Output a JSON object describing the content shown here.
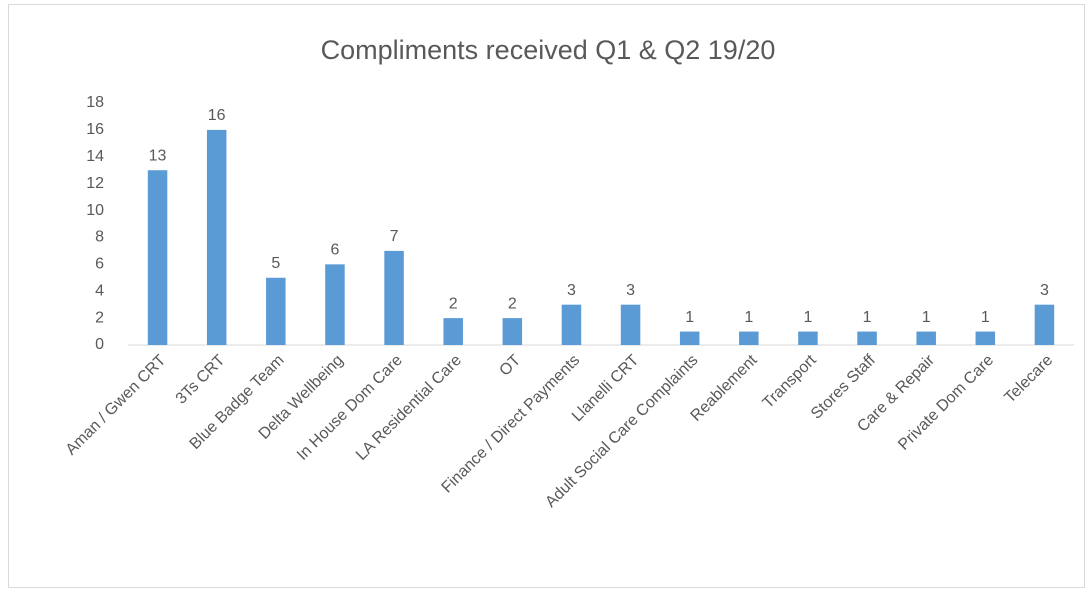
{
  "chart_data": {
    "type": "bar",
    "title": "Compliments received Q1 & Q2 19/20",
    "categories": [
      "Aman / Gwen CRT",
      "3Ts CRT",
      "Blue Badge Team",
      "Delta Wellbeing",
      "In House Dom Care",
      "LA Residential Care",
      "OT",
      "Finance / Direct Payments",
      "Llanelli CRT",
      "Adult Social Care Complaints",
      "Reablement",
      "Transport",
      "Stores Staff",
      "Care & Repair",
      "Private Dom Care",
      "Telecare"
    ],
    "values": [
      13,
      16,
      5,
      6,
      7,
      2,
      2,
      3,
      3,
      1,
      1,
      1,
      1,
      1,
      1,
      3
    ],
    "color": "#5b9bd5",
    "ylim": [
      0,
      18
    ],
    "yticks": [
      0,
      2,
      4,
      6,
      8,
      10,
      12,
      14,
      16,
      18
    ],
    "grid": false,
    "data_labels": true
  }
}
